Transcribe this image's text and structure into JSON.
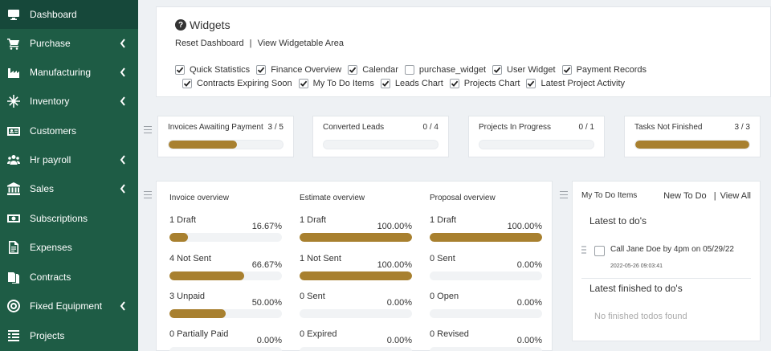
{
  "sidebar": {
    "items": [
      {
        "label": "Dashboard",
        "icon": "monitor-icon",
        "active": true,
        "chevron": false
      },
      {
        "label": "Purchase",
        "icon": "cart-icon",
        "active": false,
        "chevron": true
      },
      {
        "label": "Manufacturing",
        "icon": "factory-icon",
        "active": false,
        "chevron": true
      },
      {
        "label": "Inventory",
        "icon": "snowflake-icon",
        "active": false,
        "chevron": true
      },
      {
        "label": "Customers",
        "icon": "id-card-icon",
        "active": false,
        "chevron": false
      },
      {
        "label": "Hr payroll",
        "icon": "users-icon",
        "active": false,
        "chevron": true
      },
      {
        "label": "Sales",
        "icon": "bank-icon",
        "active": false,
        "chevron": true
      },
      {
        "label": "Subscriptions",
        "icon": "money-icon",
        "active": false,
        "chevron": false
      },
      {
        "label": "Expenses",
        "icon": "file-icon",
        "active": false,
        "chevron": false
      },
      {
        "label": "Contracts",
        "icon": "documents-icon",
        "active": false,
        "chevron": false
      },
      {
        "label": "Fixed Equipment",
        "icon": "target-icon",
        "active": false,
        "chevron": true
      },
      {
        "label": "Projects",
        "icon": "list-icon",
        "active": false,
        "chevron": false
      }
    ]
  },
  "widgets": {
    "title": "Widgets",
    "reset_label": "Reset Dashboard",
    "separator": "|",
    "view_label": "View Widgetable Area",
    "row1": [
      {
        "label": "Quick Statistics",
        "checked": true
      },
      {
        "label": "Finance Overview",
        "checked": true
      },
      {
        "label": "Calendar",
        "checked": true
      },
      {
        "label": "purchase_widget",
        "checked": false
      },
      {
        "label": "User Widget",
        "checked": true
      },
      {
        "label": "Payment Records",
        "checked": true
      }
    ],
    "row2": [
      {
        "label": "Contracts Expiring Soon",
        "checked": true
      },
      {
        "label": "My To Do Items",
        "checked": true
      },
      {
        "label": "Leads Chart",
        "checked": true
      },
      {
        "label": "Projects Chart",
        "checked": true
      },
      {
        "label": "Latest Project Activity",
        "checked": true
      }
    ]
  },
  "stats": [
    {
      "label": "Invoices Awaiting Payment",
      "count": "3 / 5",
      "fraction": 0.6
    },
    {
      "label": "Converted Leads",
      "count": "0 / 4",
      "fraction": 0
    },
    {
      "label": "Projects In Progress",
      "count": "0 / 1",
      "fraction": 0
    },
    {
      "label": "Tasks Not Finished",
      "count": "3 / 3",
      "fraction": 1
    }
  ],
  "overview": {
    "columns": [
      {
        "title": "Invoice overview",
        "rows": [
          {
            "label": "1 Draft",
            "pct": "16.67%",
            "fraction": 0.1667
          },
          {
            "label": "4 Not Sent",
            "pct": "66.67%",
            "fraction": 0.6667
          },
          {
            "label": "3 Unpaid",
            "pct": "50.00%",
            "fraction": 0.5
          },
          {
            "label": "0 Partially Paid",
            "pct": "0.00%",
            "fraction": 0
          }
        ]
      },
      {
        "title": "Estimate overview",
        "rows": [
          {
            "label": "1 Draft",
            "pct": "100.00%",
            "fraction": 1
          },
          {
            "label": "1 Not Sent",
            "pct": "100.00%",
            "fraction": 1
          },
          {
            "label": "0 Sent",
            "pct": "0.00%",
            "fraction": 0
          },
          {
            "label": "0 Expired",
            "pct": "0.00%",
            "fraction": 0
          }
        ]
      },
      {
        "title": "Proposal overview",
        "rows": [
          {
            "label": "1 Draft",
            "pct": "100.00%",
            "fraction": 1
          },
          {
            "label": "0 Sent",
            "pct": "0.00%",
            "fraction": 0
          },
          {
            "label": "0 Open",
            "pct": "0.00%",
            "fraction": 0
          },
          {
            "label": "0 Revised",
            "pct": "0.00%",
            "fraction": 0
          }
        ]
      }
    ]
  },
  "todo": {
    "title": "My To Do Items",
    "new_label": "New To Do",
    "separator": "|",
    "view_all_label": "View All",
    "latest_heading": "Latest to do's",
    "item_text": "Call Jane Doe by 4pm on 05/29/22",
    "item_date": "2022-05-26 09:03:41",
    "finished_heading": "Latest finished to do's",
    "empty_text": "No finished todos found"
  },
  "colors": {
    "sidebar": "#1e5c45",
    "sidebar_active": "#16483a",
    "progress": "#a8802f",
    "background": "#eef1f4"
  }
}
